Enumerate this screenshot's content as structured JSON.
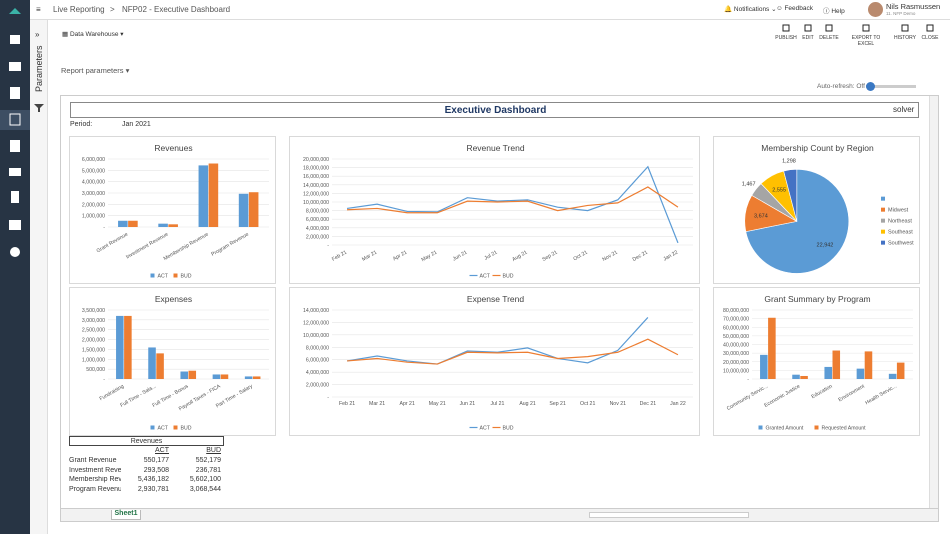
{
  "topbar": {
    "breadcrumb": [
      "Live Reporting",
      "NFP02 - Executive Dashboard"
    ],
    "separator": ">",
    "notifications": "Notifications",
    "feedback": "Feedback",
    "help": "Help",
    "user": "Nils Rasmussen",
    "user_sub": "11. NFP Demo"
  },
  "sidebar": {
    "parameters": "Parameters"
  },
  "toolbar": {
    "source": "Data Warehouse",
    "buttons": [
      "PUBLISH",
      "EDIT",
      "DELETE",
      "EXPORT TO EXCEL",
      "HISTORY",
      "CLOSE"
    ]
  },
  "report_parameters": "Report parameters",
  "auto_refresh": "Auto-refresh: Off",
  "sheet": {
    "title": "Executive Dashboard",
    "logo": "solver",
    "period_label": "Period:",
    "period": "Jan 2021",
    "tab": "Sheet1"
  },
  "chart_data": [
    {
      "type": "bar",
      "title": "Revenues",
      "categories": [
        "Grant Revenue",
        "Investment Revenue",
        "Membership Revenue",
        "Program Revenue"
      ],
      "series": [
        {
          "name": "ACT",
          "color": "#5b9bd5",
          "values": [
            550177,
            293508,
            5436182,
            2930781
          ]
        },
        {
          "name": "BUD",
          "color": "#ed7d31",
          "values": [
            552179,
            236781,
            5602100,
            3068544
          ]
        }
      ],
      "ylim": [
        0,
        6000000
      ],
      "yticks": [
        {
          "value": 0,
          "label": "-"
        },
        {
          "value": 1000000,
          "label": "1,000,000"
        },
        {
          "value": 2000000,
          "label": "2,000,000"
        },
        {
          "value": 3000000,
          "label": "3,000,000"
        },
        {
          "value": 4000000,
          "label": "4,000,000"
        },
        {
          "value": 5000000,
          "label": "5,000,000"
        },
        {
          "value": 6000000,
          "label": "6,000,000"
        }
      ],
      "grid": true,
      "legend": "bottom"
    },
    {
      "type": "line",
      "title": "Revenue Trend",
      "categories": [
        "Feb 21",
        "Mar 21",
        "Apr 21",
        "May 21",
        "Jun 21",
        "Jul 21",
        "Aug 21",
        "Sep 21",
        "Oct 21",
        "Nov 21",
        "Dec 21",
        "Jan 22"
      ],
      "series": [
        {
          "name": "ACT",
          "color": "#5b9bd5",
          "values": [
            8500000,
            9500000,
            7800000,
            7700000,
            11000000,
            10200000,
            10500000,
            8800000,
            8000000,
            10500000,
            18200000,
            500000
          ]
        },
        {
          "name": "BUD",
          "color": "#ed7d31",
          "values": [
            8200000,
            8500000,
            7500000,
            7500000,
            10200000,
            10000000,
            10200000,
            8000000,
            9200000,
            9800000,
            13500000,
            8800000
          ]
        }
      ],
      "ylim": [
        0,
        20000000
      ],
      "yticks": [
        {
          "value": 0,
          "label": "-"
        },
        {
          "value": 2000000,
          "label": "2,000,000"
        },
        {
          "value": 4000000,
          "label": "4,000,000"
        },
        {
          "value": 6000000,
          "label": "6,000,000"
        },
        {
          "value": 8000000,
          "label": "8,000,000"
        },
        {
          "value": 10000000,
          "label": "10,000,000"
        },
        {
          "value": 12000000,
          "label": "12,000,000"
        },
        {
          "value": 14000000,
          "label": "14,000,000"
        },
        {
          "value": 16000000,
          "label": "16,000,000"
        },
        {
          "value": 18000000,
          "label": "18,000,000"
        },
        {
          "value": 20000000,
          "label": "20,000,000"
        }
      ],
      "grid": true,
      "legend": "bottom"
    },
    {
      "type": "pie",
      "title": "Membership Count by Region",
      "categories": [
        null,
        "Midwest",
        "Northeast",
        "Southeast",
        "Southwest"
      ],
      "values": [
        22942,
        3674,
        1467,
        2555,
        1298
      ],
      "value_labels": [
        "22,942",
        "3,674",
        "1,467",
        "2,555",
        "1,298"
      ],
      "colors": [
        "#5b9bd5",
        "#ed7d31",
        "#a5a5a5",
        "#ffc000",
        "#4472c4"
      ],
      "legend": "right"
    },
    {
      "type": "bar",
      "title": "Expenses",
      "categories": [
        "Fundraising",
        "Full Time - Sala...",
        "Full Time - Bonus",
        "Payroll Taxes - FICA",
        "Part Time - Salary"
      ],
      "series": [
        {
          "name": "ACT",
          "color": "#5b9bd5",
          "values": [
            3200000,
            1600000,
            380000,
            230000,
            130000
          ]
        },
        {
          "name": "BUD",
          "color": "#ed7d31",
          "values": [
            3200000,
            1300000,
            420000,
            230000,
            130000
          ]
        }
      ],
      "ylim": [
        0,
        3500000
      ],
      "yticks": [
        {
          "value": 0,
          "label": "-"
        },
        {
          "value": 500000,
          "label": "500,000"
        },
        {
          "value": 1000000,
          "label": "1,000,000"
        },
        {
          "value": 1500000,
          "label": "1,500,000"
        },
        {
          "value": 2000000,
          "label": "2,000,000"
        },
        {
          "value": 2500000,
          "label": "2,500,000"
        },
        {
          "value": 3000000,
          "label": "3,000,000"
        },
        {
          "value": 3500000,
          "label": "3,500,000"
        }
      ],
      "grid": true,
      "legend": "bottom"
    },
    {
      "type": "line",
      "title": "Expense Trend",
      "categories": [
        "Feb 21",
        "Mar 21",
        "Apr 21",
        "May 21",
        "Jun 21",
        "Jul 21",
        "Aug 21",
        "Sep 21",
        "Oct 21",
        "Nov 21",
        "Dec 21",
        "Jan 22"
      ],
      "series": [
        {
          "name": "ACT",
          "color": "#5b9bd5",
          "values": [
            5800000,
            6600000,
            5800000,
            5300000,
            7400000,
            7200000,
            7900000,
            6200000,
            5500000,
            7500000,
            12800000,
            null
          ]
        },
        {
          "name": "BUD",
          "color": "#ed7d31",
          "values": [
            5800000,
            6200000,
            5600000,
            5300000,
            7200000,
            7100000,
            7200000,
            6200000,
            6500000,
            7200000,
            9300000,
            6800000
          ]
        }
      ],
      "ylim": [
        0,
        14000000
      ],
      "yticks": [
        {
          "value": 0,
          "label": "-"
        },
        {
          "value": 2000000,
          "label": "2,000,000"
        },
        {
          "value": 4000000,
          "label": "4,000,000"
        },
        {
          "value": 6000000,
          "label": "6,000,000"
        },
        {
          "value": 8000000,
          "label": "8,000,000"
        },
        {
          "value": 10000000,
          "label": "10,000,000"
        },
        {
          "value": 12000000,
          "label": "12,000,000"
        },
        {
          "value": 14000000,
          "label": "14,000,000"
        }
      ],
      "grid": true,
      "legend": "bottom"
    },
    {
      "type": "bar",
      "title": "Grant Summary by Program",
      "categories": [
        "Community Servic...",
        "Economic Justice",
        "Education",
        "Environment",
        "Health Servic..."
      ],
      "series": [
        {
          "name": "Granted Amount",
          "color": "#5b9bd5",
          "values": [
            28000000,
            5000000,
            14000000,
            12000000,
            6000000
          ]
        },
        {
          "name": "Requested Amount",
          "color": "#ed7d31",
          "values": [
            71000000,
            3500000,
            33000000,
            32000000,
            19000000
          ]
        }
      ],
      "ylim": [
        0,
        80000000
      ],
      "yticks": [
        {
          "value": 0,
          "label": "-"
        },
        {
          "value": 10000000,
          "label": "10,000,000"
        },
        {
          "value": 20000000,
          "label": "20,000,000"
        },
        {
          "value": 30000000,
          "label": "30,000,000"
        },
        {
          "value": 40000000,
          "label": "40,000,000"
        },
        {
          "value": 50000000,
          "label": "50,000,000"
        },
        {
          "value": 60000000,
          "label": "60,000,000"
        },
        {
          "value": 70000000,
          "label": "70,000,000"
        },
        {
          "value": 80000000,
          "label": "80,000,000"
        }
      ],
      "grid": true,
      "legend": "bottom"
    }
  ],
  "table": {
    "title": "Revenues",
    "columns": [
      "ACT",
      "BUD"
    ],
    "rows": [
      [
        "Grant Revenue",
        "550,177",
        "552,179"
      ],
      [
        "Investment Reve",
        "293,508",
        "236,781"
      ],
      [
        "Membership Rev",
        "5,436,182",
        "5,602,100"
      ],
      [
        "Program Revenu",
        "2,930,781",
        "3,068,544"
      ]
    ]
  }
}
